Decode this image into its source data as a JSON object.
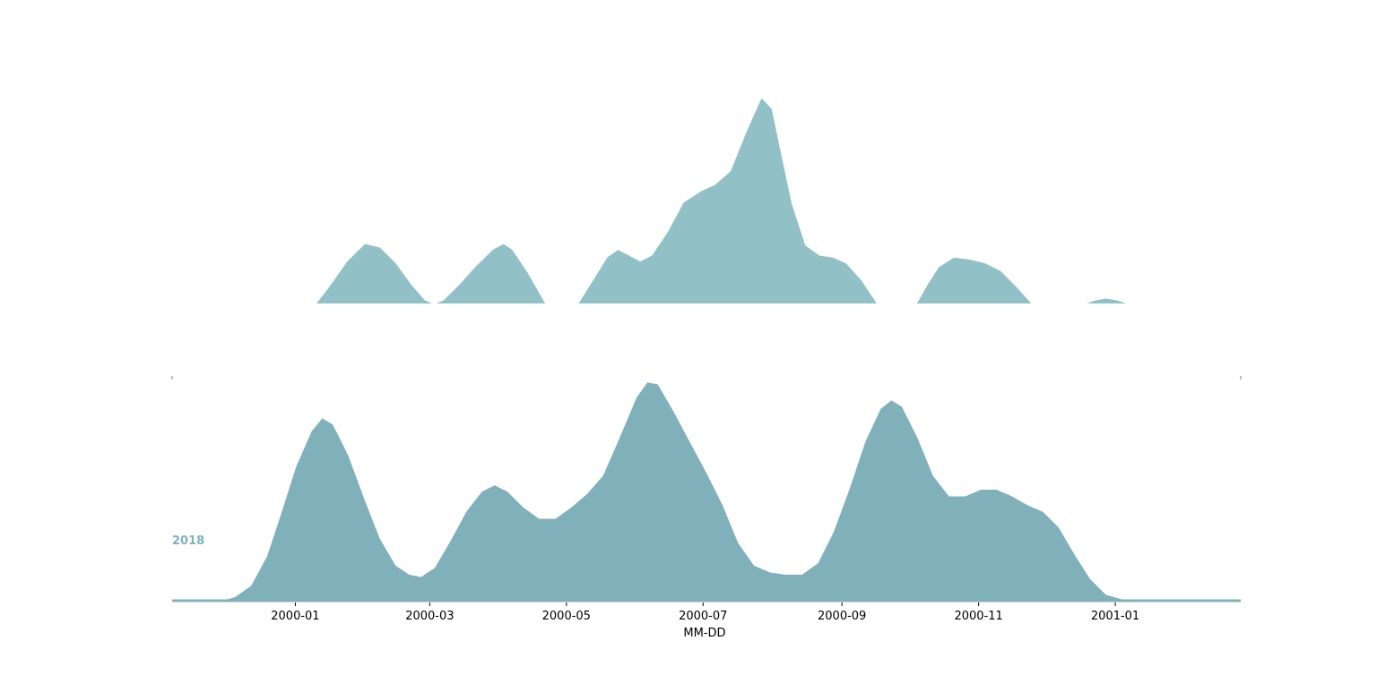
{
  "chart_data": {
    "type": "area",
    "subtype": "ridgeline density",
    "xlabel": "MM-DD",
    "x_ticks": [
      "2000-01",
      "2000-03",
      "2000-05",
      "2000-07",
      "2000-09",
      "2000-11",
      "2001-01"
    ],
    "grid": false,
    "series": [
      {
        "name": "",
        "color": "#91c1c6",
        "points": [
          [
            "1999-12-01",
            0.0
          ],
          [
            "1999-12-15",
            0.0
          ],
          [
            "1999-12-31",
            0.0
          ],
          [
            "2000-01-10",
            0.0
          ],
          [
            "2000-01-16",
            0.09
          ],
          [
            "2000-01-24",
            0.22
          ],
          [
            "2000-02-01",
            0.31
          ],
          [
            "2000-02-08",
            0.29
          ],
          [
            "2000-02-15",
            0.21
          ],
          [
            "2000-02-22",
            0.1
          ],
          [
            "2000-02-28",
            0.02
          ],
          [
            "2000-03-03",
            0.0
          ],
          [
            "2000-03-07",
            0.02
          ],
          [
            "2000-03-14",
            0.1
          ],
          [
            "2000-03-21",
            0.19
          ],
          [
            "2000-03-29",
            0.28
          ],
          [
            "2000-04-03",
            0.31
          ],
          [
            "2000-04-07",
            0.28
          ],
          [
            "2000-04-14",
            0.16
          ],
          [
            "2000-04-22",
            0.0
          ],
          [
            "2000-04-30",
            0.0
          ],
          [
            "2000-05-06",
            0.0
          ],
          [
            "2000-05-12",
            0.11
          ],
          [
            "2000-05-19",
            0.24
          ],
          [
            "2000-05-24",
            0.28
          ],
          [
            "2000-05-29",
            0.25
          ],
          [
            "2000-06-03",
            0.22
          ],
          [
            "2000-06-08",
            0.25
          ],
          [
            "2000-06-15",
            0.37
          ],
          [
            "2000-06-22",
            0.52
          ],
          [
            "2000-06-30",
            0.58
          ],
          [
            "2000-07-06",
            0.61
          ],
          [
            "2000-07-13",
            0.68
          ],
          [
            "2000-07-20",
            0.88
          ],
          [
            "2000-07-27",
            1.06
          ],
          [
            "2000-08-01",
            1.0
          ],
          [
            "2000-08-05",
            0.78
          ],
          [
            "2000-08-10",
            0.51
          ],
          [
            "2000-08-16",
            0.3
          ],
          [
            "2000-08-22",
            0.25
          ],
          [
            "2000-08-28",
            0.24
          ],
          [
            "2000-09-03",
            0.21
          ],
          [
            "2000-09-10",
            0.12
          ],
          [
            "2000-09-17",
            0.0
          ],
          [
            "2000-09-30",
            0.0
          ],
          [
            "2000-10-04",
            0.0
          ],
          [
            "2000-10-09",
            0.1
          ],
          [
            "2000-10-14",
            0.19
          ],
          [
            "2000-10-21",
            0.24
          ],
          [
            "2000-10-28",
            0.23
          ],
          [
            "2000-11-04",
            0.21
          ],
          [
            "2000-11-11",
            0.17
          ],
          [
            "2000-11-18",
            0.09
          ],
          [
            "2000-11-25",
            0.0
          ],
          [
            "2000-12-10",
            0.0
          ],
          [
            "2000-12-18",
            0.0
          ],
          [
            "2000-12-23",
            0.02
          ],
          [
            "2000-12-28",
            0.03
          ],
          [
            "2001-01-02",
            0.02
          ],
          [
            "2001-01-07",
            0.0
          ],
          [
            "2001-02-01",
            0.0
          ]
        ]
      },
      {
        "name": "2018",
        "color": "#80b1bb",
        "points": [
          [
            "1999-11-01",
            0.0
          ],
          [
            "1999-11-15",
            0.0
          ],
          [
            "1999-11-28",
            0.0
          ],
          [
            "1999-12-05",
            0.02
          ],
          [
            "1999-12-12",
            0.07
          ],
          [
            "1999-12-19",
            0.2
          ],
          [
            "1999-12-25",
            0.38
          ],
          [
            "2000-01-01",
            0.6
          ],
          [
            "2000-01-08",
            0.76
          ],
          [
            "2000-01-13",
            0.82
          ],
          [
            "2000-01-18",
            0.79
          ],
          [
            "2000-01-25",
            0.65
          ],
          [
            "2000-02-01",
            0.46
          ],
          [
            "2000-02-08",
            0.28
          ],
          [
            "2000-02-15",
            0.16
          ],
          [
            "2000-02-21",
            0.12
          ],
          [
            "2000-02-26",
            0.11
          ],
          [
            "2000-03-03",
            0.15
          ],
          [
            "2000-03-10",
            0.27
          ],
          [
            "2000-03-17",
            0.4
          ],
          [
            "2000-03-24",
            0.49
          ],
          [
            "2000-03-30",
            0.52
          ],
          [
            "2000-04-05",
            0.49
          ],
          [
            "2000-04-12",
            0.42
          ],
          [
            "2000-04-19",
            0.37
          ],
          [
            "2000-04-26",
            0.37
          ],
          [
            "2000-05-03",
            0.42
          ],
          [
            "2000-05-10",
            0.48
          ],
          [
            "2000-05-17",
            0.56
          ],
          [
            "2000-05-24",
            0.72
          ],
          [
            "2000-06-01",
            0.91
          ],
          [
            "2000-06-06",
            0.98
          ],
          [
            "2000-06-11",
            0.97
          ],
          [
            "2000-06-18",
            0.85
          ],
          [
            "2000-06-26",
            0.7
          ],
          [
            "2000-07-03",
            0.57
          ],
          [
            "2000-07-10",
            0.43
          ],
          [
            "2000-07-17",
            0.26
          ],
          [
            "2000-07-24",
            0.16
          ],
          [
            "2000-07-31",
            0.13
          ],
          [
            "2000-08-07",
            0.12
          ],
          [
            "2000-08-14",
            0.12
          ],
          [
            "2000-08-21",
            0.17
          ],
          [
            "2000-08-28",
            0.31
          ],
          [
            "2000-09-04",
            0.5
          ],
          [
            "2000-09-11",
            0.71
          ],
          [
            "2000-09-18",
            0.86
          ],
          [
            "2000-09-23",
            0.9
          ],
          [
            "2000-09-28",
            0.87
          ],
          [
            "2000-10-05",
            0.73
          ],
          [
            "2000-10-12",
            0.56
          ],
          [
            "2000-10-19",
            0.47
          ],
          [
            "2000-10-26",
            0.47
          ],
          [
            "2000-11-02",
            0.5
          ],
          [
            "2000-11-09",
            0.5
          ],
          [
            "2000-11-16",
            0.47
          ],
          [
            "2000-11-23",
            0.43
          ],
          [
            "2000-11-30",
            0.4
          ],
          [
            "2000-12-07",
            0.33
          ],
          [
            "2000-12-14",
            0.21
          ],
          [
            "2000-12-21",
            0.1
          ],
          [
            "2000-12-28",
            0.03
          ],
          [
            "2001-01-04",
            0.01
          ],
          [
            "2001-01-11",
            0.0
          ],
          [
            "2001-01-31",
            0.0
          ],
          [
            "2001-02-15",
            0.0
          ]
        ]
      }
    ]
  }
}
